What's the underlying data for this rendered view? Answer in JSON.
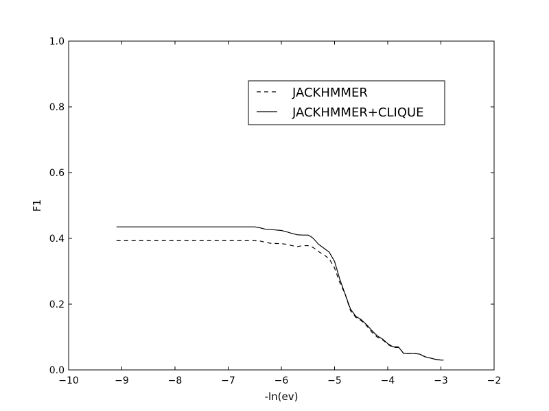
{
  "chart_data": {
    "type": "line",
    "title": "",
    "xlabel": "-ln(ev)",
    "ylabel": "F1",
    "xlim": [
      -10,
      -2
    ],
    "ylim": [
      0.0,
      1.0
    ],
    "xticks": [
      -10,
      -9,
      -8,
      -7,
      -6,
      -5,
      -4,
      -3,
      -2
    ],
    "xtick_labels": [
      "−10",
      "−9",
      "−8",
      "−7",
      "−6",
      "−5",
      "−4",
      "−3",
      "−2"
    ],
    "yticks": [
      0.0,
      0.2,
      0.4,
      0.6,
      0.8,
      1.0
    ],
    "ytick_labels": [
      "0.0",
      "0.2",
      "0.4",
      "0.6",
      "0.8",
      "1.0"
    ],
    "grid": false,
    "legend_position": "upper-right",
    "series": [
      {
        "name": "JACKHMMER",
        "style": "dashed",
        "color": "#000000",
        "x": [
          -9.1,
          -8.5,
          -8.0,
          -7.5,
          -7.0,
          -6.5,
          -6.4,
          -6.3,
          -6.2,
          -6.0,
          -5.9,
          -5.8,
          -5.7,
          -5.6,
          -5.5,
          -5.45,
          -5.4,
          -5.3,
          -5.2,
          -5.1,
          -5.0,
          -4.9,
          -4.8,
          -4.7,
          -4.6,
          -4.5,
          -4.4,
          -4.3,
          -4.2,
          -4.1,
          -4.0,
          -3.9,
          -3.8,
          -3.75,
          -3.7,
          -3.6,
          -3.5,
          -3.4,
          -3.3,
          -3.2,
          -3.1,
          -3.0,
          -2.95
        ],
        "y": [
          0.393,
          0.393,
          0.393,
          0.393,
          0.393,
          0.393,
          0.392,
          0.388,
          0.385,
          0.384,
          0.382,
          0.378,
          0.375,
          0.378,
          0.378,
          0.376,
          0.372,
          0.36,
          0.35,
          0.338,
          0.31,
          0.265,
          0.23,
          0.18,
          0.16,
          0.15,
          0.135,
          0.115,
          0.1,
          0.092,
          0.078,
          0.068,
          0.068,
          0.06,
          0.05,
          0.05,
          0.05,
          0.048,
          0.04,
          0.036,
          0.032,
          0.03,
          0.03
        ]
      },
      {
        "name": "JACKHMMER+CLIQUE",
        "style": "solid",
        "color": "#000000",
        "x": [
          -9.1,
          -8.5,
          -8.0,
          -7.5,
          -7.0,
          -6.5,
          -6.4,
          -6.3,
          -6.2,
          -6.0,
          -5.9,
          -5.8,
          -5.7,
          -5.6,
          -5.5,
          -5.45,
          -5.4,
          -5.3,
          -5.2,
          -5.1,
          -5.0,
          -4.9,
          -4.8,
          -4.7,
          -4.6,
          -4.5,
          -4.4,
          -4.3,
          -4.2,
          -4.1,
          -4.0,
          -3.9,
          -3.8,
          -3.75,
          -3.7,
          -3.6,
          -3.5,
          -3.4,
          -3.3,
          -3.2,
          -3.1,
          -3.0,
          -2.95
        ],
        "y": [
          0.435,
          0.435,
          0.435,
          0.435,
          0.435,
          0.435,
          0.432,
          0.428,
          0.427,
          0.424,
          0.42,
          0.415,
          0.411,
          0.41,
          0.41,
          0.406,
          0.4,
          0.382,
          0.37,
          0.358,
          0.33,
          0.275,
          0.23,
          0.185,
          0.163,
          0.153,
          0.138,
          0.12,
          0.104,
          0.094,
          0.08,
          0.07,
          0.07,
          0.06,
          0.05,
          0.05,
          0.05,
          0.048,
          0.04,
          0.036,
          0.032,
          0.03,
          0.03
        ]
      }
    ]
  }
}
